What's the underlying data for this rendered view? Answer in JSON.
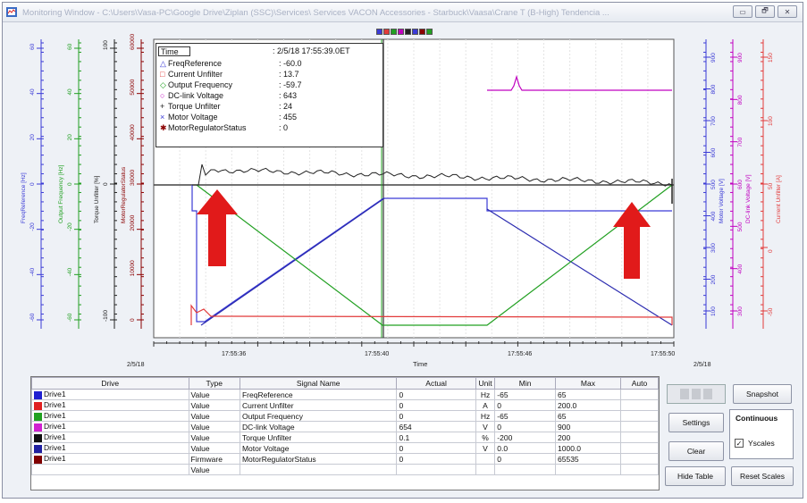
{
  "window": {
    "title": "Monitoring Window - C:\\Users\\Vasa-PC\\Google Drive\\Ziplan (SSC)\\Services\\ Services VACON Accessories - Starbuck\\Vaasa\\Crane T (B-High) Tendencia ...",
    "minimize": "▭",
    "restore": "🗗",
    "close": "✕"
  },
  "legend_swatches": [
    "#3b3bd6",
    "#e23b3b",
    "#22a022",
    "#c000c0",
    "#222222",
    "#3b3bd6",
    "#8b0000",
    "#22a022"
  ],
  "info_box": {
    "time_label": "Time",
    "time_value": ": 2/5/18 17:55:39.0ET",
    "rows": [
      {
        "marker": "△",
        "color": "#3b3bd6",
        "name": "FreqReference",
        "value": ": -60.0"
      },
      {
        "marker": "□",
        "color": "#e23b3b",
        "name": "Current Unfilter",
        "value": ": 13.7"
      },
      {
        "marker": "◇",
        "color": "#22a022",
        "name": "Output Frequency",
        "value": ": -59.7"
      },
      {
        "marker": "○",
        "color": "#c000c0",
        "name": "DC-link Voltage",
        "value": ": 643"
      },
      {
        "marker": "+",
        "color": "#222222",
        "name": "Torque Unfilter",
        "value": ": 24"
      },
      {
        "marker": "×",
        "color": "#3b3bd6",
        "name": "Motor Voltage",
        "value": ": 455"
      },
      {
        "marker": "✱",
        "color": "#8b0000",
        "name": "MotorRegulatorStatus",
        "value": ": 0"
      }
    ]
  },
  "left_axes": [
    {
      "label": "FreqReference [Hz]",
      "color": "#3b3bd6",
      "ticks": [
        "60",
        "40",
        "20",
        "0",
        "-20",
        "-40",
        "-60"
      ]
    },
    {
      "label": "Output Frequency [Hz]",
      "color": "#22a022",
      "ticks": [
        "60",
        "40",
        "20",
        "0",
        "-20",
        "-40",
        "-60"
      ]
    },
    {
      "label": "Torque Unfilter [%]",
      "color": "#222222",
      "ticks": [
        "100",
        "0",
        "-100"
      ]
    },
    {
      "label": "MotorRegulatorStatus",
      "color": "#8b0000",
      "ticks": [
        "60000",
        "50000",
        "40000",
        "30000",
        "20000",
        "10000",
        "0"
      ]
    }
  ],
  "right_axes": [
    {
      "label": "Motor Voltage [V]",
      "color": "#3b3bd6",
      "ticks": [
        "900",
        "800",
        "700",
        "600",
        "500",
        "400",
        "300",
        "200",
        "100"
      ]
    },
    {
      "label": "DC-link Voltage [V]",
      "color": "#c000c0",
      "ticks": [
        "900",
        "800",
        "700",
        "600",
        "500",
        "400",
        "300"
      ]
    },
    {
      "label": "Current Unfilter [A]",
      "color": "#e23b3b",
      "ticks": [
        "150",
        "100",
        "50",
        "0",
        "-50"
      ]
    }
  ],
  "x_axis": {
    "label": "Time",
    "start_date": "2/5/18",
    "end_date": "2/5/18",
    "ticks": [
      "17:55:36",
      "17:55:40",
      "17:55:46",
      "17:55:50"
    ]
  },
  "table": {
    "headers": [
      "Drive",
      "Type",
      "Signal Name",
      "Actual",
      "Unit",
      "Min",
      "Max",
      "Auto"
    ],
    "rows": [
      {
        "color": "#2020d0",
        "drive": "Drive1",
        "type": "Value",
        "signal": "FreqReference",
        "actual": "0",
        "unit": "Hz",
        "min": "-65",
        "max": "65"
      },
      {
        "color": "#e02020",
        "drive": "Drive1",
        "type": "Value",
        "signal": "Current Unfilter",
        "actual": "0",
        "unit": "A",
        "min": "0",
        "max": "200.0"
      },
      {
        "color": "#20a020",
        "drive": "Drive1",
        "type": "Value",
        "signal": "Output Frequency",
        "actual": "0",
        "unit": "Hz",
        "min": "-65",
        "max": "65"
      },
      {
        "color": "#d020d0",
        "drive": "Drive1",
        "type": "Value",
        "signal": "DC-link Voltage",
        "actual": "654",
        "unit": "V",
        "min": "0",
        "max": "900"
      },
      {
        "color": "#101010",
        "drive": "Drive1",
        "type": "Value",
        "signal": "Torque Unfilter",
        "actual": "0.1",
        "unit": "%",
        "min": "-200",
        "max": "200"
      },
      {
        "color": "#2020a0",
        "drive": "Drive1",
        "type": "Value",
        "signal": "Motor Voltage",
        "actual": "0",
        "unit": "V",
        "min": "0.0",
        "max": "1000.0"
      },
      {
        "color": "#800000",
        "drive": "Drive1",
        "type": "Firmware",
        "signal": "MotorRegulatorStatus",
        "actual": "0",
        "unit": "",
        "min": "0",
        "max": "65535"
      },
      {
        "color": "",
        "drive": "",
        "type": "Value",
        "signal": "",
        "actual": "",
        "unit": "",
        "min": "",
        "max": ""
      }
    ]
  },
  "buttons": {
    "snapshot": "Snapshot",
    "settings": "Settings",
    "continuous": "Continuous",
    "clear": "Clear",
    "yscales": "Yscales",
    "hide_table": "Hide Table",
    "reset_scales": "Reset Scales"
  },
  "chart_data": {
    "type": "line",
    "x_unit": "time",
    "series": [
      {
        "name": "FreqReference",
        "unit": "Hz",
        "points": [
          [
            0,
            -60
          ],
          [
            0.4,
            60
          ],
          [
            6,
            60
          ],
          [
            6.2,
            -60
          ],
          [
            8.5,
            0
          ]
        ]
      },
      {
        "name": "Output Frequency",
        "unit": "Hz",
        "points": [
          [
            0.4,
            0
          ],
          [
            3.2,
            -59.7
          ],
          [
            6.4,
            -59.7
          ],
          [
            9.6,
            0
          ]
        ]
      },
      {
        "name": "Torque Unfilter",
        "unit": "%",
        "points": [
          [
            0.2,
            0
          ],
          [
            0.5,
            24
          ],
          [
            5,
            16
          ],
          [
            8,
            4
          ],
          [
            9.6,
            4
          ]
        ]
      },
      {
        "name": "DC-link Voltage",
        "unit": "V",
        "points": [
          [
            4.8,
            820
          ],
          [
            5.2,
            820
          ],
          [
            5.3,
            860
          ],
          [
            5.4,
            820
          ],
          [
            9.6,
            820
          ]
        ]
      },
      {
        "name": "Current Unfilter",
        "unit": "A",
        "points": [
          [
            0.3,
            20
          ],
          [
            0.5,
            13.7
          ],
          [
            9.6,
            13.7
          ]
        ]
      }
    ]
  }
}
